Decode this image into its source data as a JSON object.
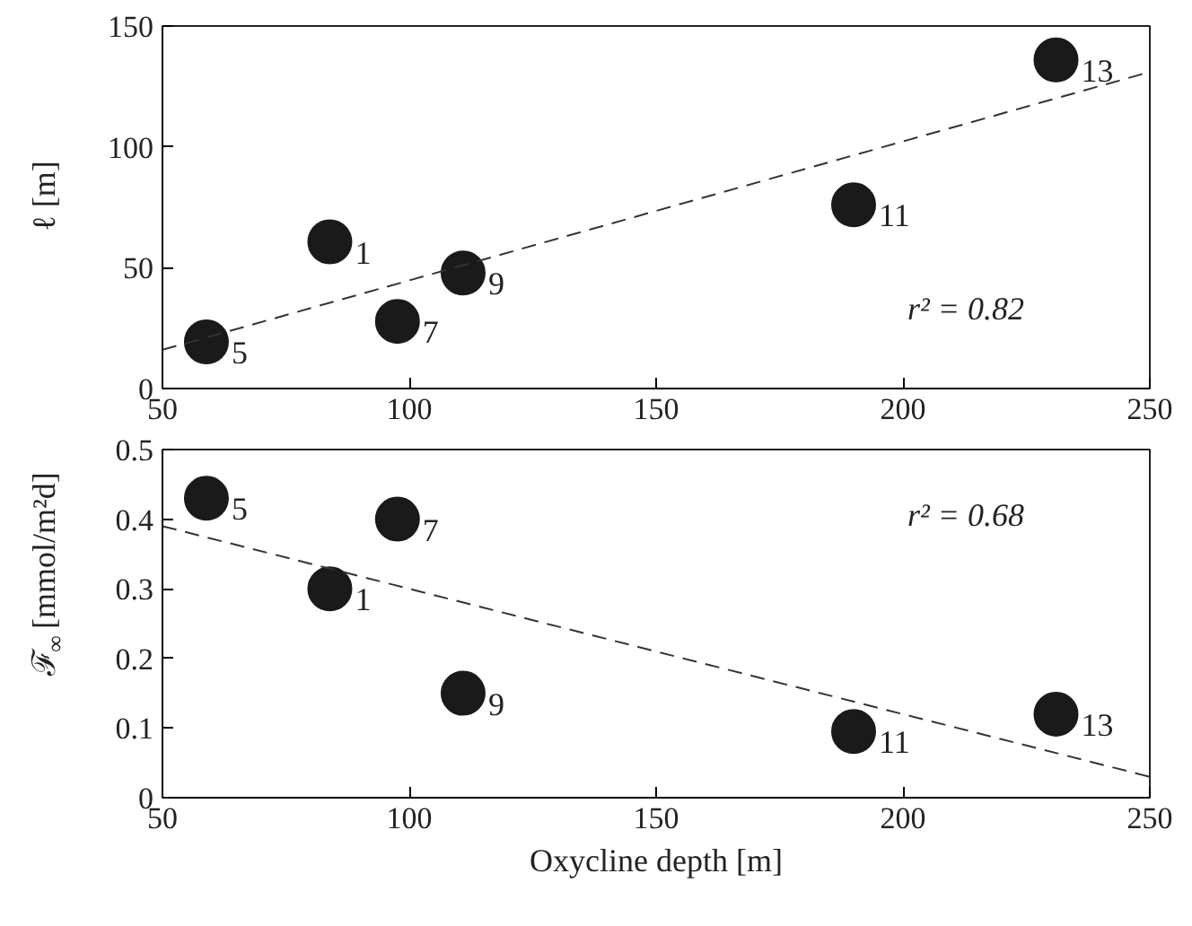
{
  "chart_data": [
    {
      "type": "scatter",
      "ylabel": "ℓ [m]",
      "xlim": [
        50,
        250
      ],
      "ylim": [
        0,
        150
      ],
      "xticks": [
        50,
        100,
        150,
        200,
        250
      ],
      "yticks": [
        0,
        50,
        100,
        150
      ],
      "grid": false,
      "annotations": [
        "r² = 0.82",
        {
          "text": "1",
          "x": 83.9,
          "y": 60.7
        },
        {
          "text": "5",
          "x": 58.9,
          "y": 19.3
        },
        {
          "text": "7",
          "x": 97.6,
          "y": 27.8
        },
        {
          "text": "9",
          "x": 110.9,
          "y": 47.8
        },
        {
          "text": "11",
          "x": 190,
          "y": 76
        },
        {
          "text": "13",
          "x": 231,
          "y": 136
        }
      ],
      "series": [
        {
          "color": "#1a1a1a",
          "marker": "circle",
          "x": [
            83.9,
            58.9,
            97.6,
            110.9,
            190,
            231
          ],
          "values": [
            60.7,
            19.3,
            27.8,
            47.8,
            76,
            136
          ]
        },
        {
          "type": "line",
          "color": "#333333",
          "line_style": "dashed",
          "x": [
            50,
            250
          ],
          "values": [
            16,
            131
          ]
        }
      ]
    },
    {
      "type": "scatter",
      "ylabel": "ℱ$_{∞}$ [mmol/m²d]",
      "xlabel": "Oxycline depth [m]",
      "xlim": [
        50,
        250
      ],
      "ylim": [
        0,
        0.5
      ],
      "xticks": [
        50,
        100,
        150,
        200,
        250
      ],
      "yticks": [
        0,
        0.1,
        0.2,
        0.3,
        0.4,
        0.5
      ],
      "grid": false,
      "annotations": [
        "r² = 0.68",
        {
          "text": "1",
          "x": 83.9,
          "y": 0.3
        },
        {
          "text": "5",
          "x": 58.9,
          "y": 0.43
        },
        {
          "text": "7",
          "x": 97.6,
          "y": 0.4
        },
        {
          "text": "9",
          "x": 110.9,
          "y": 0.15
        },
        {
          "text": "11",
          "x": 190,
          "y": 0.095
        },
        {
          "text": "13",
          "x": 231,
          "y": 0.12
        }
      ],
      "series": [
        {
          "color": "#1a1a1a",
          "marker": "circle",
          "x": [
            83.9,
            58.9,
            97.6,
            110.9,
            190,
            231
          ],
          "values": [
            0.3,
            0.43,
            0.4,
            0.15,
            0.095,
            0.12
          ]
        },
        {
          "type": "line",
          "color": "#333333",
          "line_style": "dashed",
          "x": [
            50,
            250
          ],
          "values": [
            0.39,
            0.03
          ]
        }
      ]
    }
  ]
}
